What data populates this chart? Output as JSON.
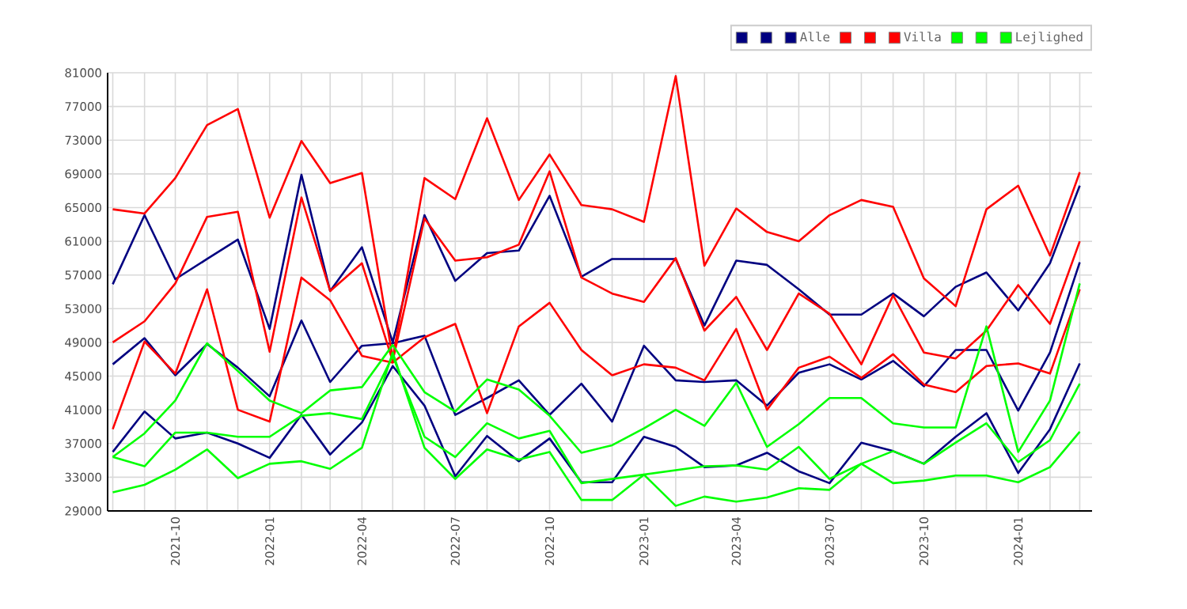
{
  "chart_data": {
    "type": "line",
    "x": [
      "2021-08",
      "2021-09",
      "2021-10",
      "2021-11",
      "2021-12",
      "2022-01",
      "2022-02",
      "2022-03",
      "2022-04",
      "2022-05",
      "2022-06",
      "2022-07",
      "2022-08",
      "2022-09",
      "2022-10",
      "2022-11",
      "2022-12",
      "2023-01",
      "2023-02",
      "2023-03",
      "2023-04",
      "2023-05",
      "2023-06",
      "2023-07",
      "2023-08",
      "2023-09",
      "2023-10",
      "2023-11",
      "2023-12",
      "2024-01",
      "2024-02",
      "2024-03"
    ],
    "series": [
      {
        "color": "#000080",
        "values": [
          36000,
          40800,
          37600,
          38300,
          37000,
          35300,
          40400,
          35700,
          39500,
          46200,
          41500,
          33100,
          37900,
          34900,
          37600,
          32400,
          32400,
          37800,
          36600,
          34200,
          34400,
          35900,
          33700,
          32300,
          37100,
          36100,
          34600,
          37800,
          40600,
          33500,
          38700,
          46500
        ]
      },
      {
        "color": "#000080",
        "values": [
          46400,
          49500,
          45100,
          48800,
          46000,
          42600,
          51600,
          44300,
          48600,
          48900,
          49800,
          40400,
          42400,
          44500,
          40400,
          44100,
          39600,
          48600,
          44500,
          44300,
          44500,
          41500,
          45400,
          46400,
          44600,
          46800,
          43800,
          48100,
          48100,
          40900,
          47800,
          58500
        ]
      },
      {
        "name": "Alle",
        "color": "#000080",
        "values": [
          55900,
          64100,
          56500,
          58900,
          61200,
          50600,
          68900,
          55100,
          60300,
          49000,
          64100,
          56300,
          59600,
          59900,
          66400,
          56800,
          58900,
          58900,
          58900,
          51000,
          58700,
          58200,
          55300,
          52300,
          52300,
          54800,
          52100,
          55600,
          57300,
          52800,
          58400,
          67600
        ]
      },
      {
        "color": "#ff0000",
        "values": [
          38700,
          49100,
          45300,
          55300,
          41000,
          39600,
          56700,
          54000,
          47400,
          46600,
          49600,
          51200,
          40600,
          50900,
          53700,
          48100,
          45100,
          46400,
          46000,
          44500,
          50600,
          41000,
          46000,
          47300,
          44800,
          47600,
          44000,
          43100,
          46200,
          46500,
          45300,
          55300
        ]
      },
      {
        "color": "#ff0000",
        "values": [
          49000,
          51500,
          56000,
          63900,
          64500,
          47900,
          66200,
          55100,
          58400,
          46800,
          63700,
          58700,
          59100,
          60600,
          69300,
          56700,
          54800,
          53800,
          59000,
          50400,
          54400,
          48100,
          54800,
          52400,
          46400,
          54600,
          47800,
          47100,
          50400,
          55800,
          51200,
          61000
        ]
      },
      {
        "name": "Villa",
        "color": "#ff0000",
        "values": [
          64800,
          64300,
          68500,
          74800,
          76700,
          63800,
          72900,
          67900,
          69100,
          47100,
          68500,
          66000,
          75600,
          65900,
          71300,
          65300,
          64800,
          63300,
          80600,
          58100,
          64900,
          62100,
          61000,
          64100,
          65900,
          65100,
          56600,
          53300,
          64800,
          67600,
          59300,
          69200
        ]
      },
      {
        "color": "#00ff00",
        "values": [
          31200,
          32100,
          33900,
          36300,
          32900,
          34600,
          34900,
          34000,
          36500,
          47800,
          36500,
          32800,
          36300,
          35100,
          36000,
          30300,
          30300,
          33300,
          29600,
          30700,
          30100,
          30600,
          31700,
          31500,
          34600,
          32300,
          32600,
          33200,
          33200,
          32400,
          34200,
          38400
        ]
      },
      {
        "color": "#00ff00",
        "values": [
          35400,
          34300,
          38300,
          38300,
          37800,
          37800,
          40300,
          40600,
          39900,
          47400,
          37800,
          35400,
          39400,
          37600,
          38500,
          32300,
          null,
          null,
          null,
          34300,
          34400,
          33900,
          36600,
          32800,
          34600,
          36100,
          34600,
          37100,
          39400,
          34800,
          37400,
          44100
        ]
      },
      {
        "name": "Lejlighed",
        "color": "#00ff00",
        "values": [
          35400,
          38200,
          42100,
          48900,
          45600,
          42100,
          40600,
          43300,
          43700,
          48700,
          43100,
          40800,
          44600,
          43400,
          40300,
          35900,
          36800,
          38800,
          41000,
          39100,
          44200,
          36600,
          39300,
          42400,
          42400,
          39400,
          38900,
          38900,
          50900,
          36000,
          42100,
          56000
        ]
      }
    ],
    "xlim": [
      "2021-07-27",
      "2024-03-13"
    ],
    "xticks": [
      {
        "value": "2021-08",
        "label": null
      },
      {
        "value": "2021-09",
        "label": null
      },
      "2021-10",
      {
        "value": "2021-11",
        "label": null
      },
      {
        "value": "2021-12",
        "label": null
      },
      "2022-01",
      {
        "value": "2022-02",
        "label": null
      },
      {
        "value": "2022-03",
        "label": null
      },
      "2022-04",
      {
        "value": "2022-05",
        "label": null
      },
      {
        "value": "2022-06",
        "label": null
      },
      "2022-07",
      {
        "value": "2022-08",
        "label": null
      },
      {
        "value": "2022-09",
        "label": null
      },
      "2022-10",
      {
        "value": "2022-11",
        "label": null
      },
      {
        "value": "2022-12",
        "label": null
      },
      "2023-01",
      {
        "value": "2023-02",
        "label": null
      },
      {
        "value": "2023-03",
        "label": null
      },
      "2023-04",
      {
        "value": "2023-05",
        "label": null
      },
      {
        "value": "2023-06",
        "label": null
      },
      "2023-07",
      {
        "value": "2023-08",
        "label": null
      },
      {
        "value": "2023-09",
        "label": null
      },
      "2023-10",
      {
        "value": "2023-11",
        "label": null
      },
      {
        "value": "2023-12",
        "label": null
      },
      "2024-01",
      {
        "value": "2024-02",
        "label": null
      },
      {
        "value": "2024-03",
        "label": null
      }
    ],
    "ylim": [
      29000,
      81000
    ],
    "yticks": [
      29000,
      33000,
      37000,
      41000,
      45000,
      49000,
      53000,
      57000,
      61000,
      65000,
      69000,
      73000,
      77000,
      81000
    ],
    "grid": true,
    "legend": "top right",
    "line_style": "solid"
  }
}
